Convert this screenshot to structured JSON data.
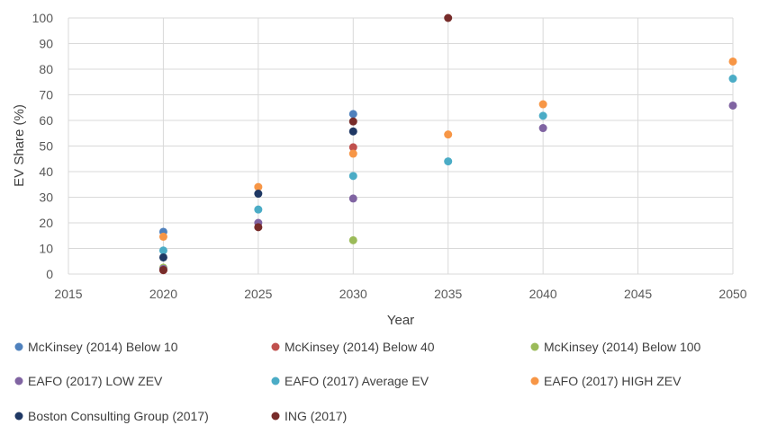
{
  "chart_data": {
    "type": "scatter",
    "title": "",
    "xlabel": "Year",
    "ylabel": "EV Share (%)",
    "xlim": [
      2015,
      2050
    ],
    "ylim": [
      0,
      100
    ],
    "xticks": [
      2015,
      2020,
      2025,
      2030,
      2035,
      2040,
      2045,
      2050
    ],
    "yticks": [
      0,
      10,
      20,
      30,
      40,
      50,
      60,
      70,
      80,
      90,
      100
    ],
    "grid": true,
    "legend_position": "bottom",
    "series": [
      {
        "name": "McKinsey (2014) Below 10",
        "color": "#4f81bd",
        "points": [
          [
            2020,
            16.5
          ],
          [
            2030,
            62.5
          ]
        ]
      },
      {
        "name": "McKinsey (2014) Below 40",
        "color": "#c0504d",
        "points": [
          [
            2020,
            1.5
          ],
          [
            2030,
            49.5
          ]
        ]
      },
      {
        "name": "McKinsey (2014) Below 100",
        "color": "#9bbb59",
        "points": [
          [
            2020,
            2.5
          ],
          [
            2030,
            13.2
          ]
        ]
      },
      {
        "name": "EAFO (2017) LOW ZEV",
        "color": "#8064a2",
        "points": [
          [
            2020,
            2.0
          ],
          [
            2025,
            20.0
          ],
          [
            2030,
            29.5
          ],
          [
            2040,
            57.0
          ],
          [
            2050,
            65.8
          ]
        ]
      },
      {
        "name": "EAFO (2017) Average EV",
        "color": "#4bacc6",
        "points": [
          [
            2020,
            9.2
          ],
          [
            2025,
            25.2
          ],
          [
            2030,
            38.3
          ],
          [
            2035,
            44.0
          ],
          [
            2040,
            61.8
          ],
          [
            2050,
            76.3
          ]
        ]
      },
      {
        "name": "EAFO (2017) HIGH ZEV",
        "color": "#f79646",
        "points": [
          [
            2020,
            14.6
          ],
          [
            2025,
            34.0
          ],
          [
            2030,
            47.0
          ],
          [
            2035,
            54.5
          ],
          [
            2040,
            66.3
          ],
          [
            2050,
            83.0
          ]
        ]
      },
      {
        "name": "Boston Consulting Group (2017)",
        "color": "#1f3864",
        "points": [
          [
            2020,
            6.5
          ],
          [
            2025,
            31.4
          ],
          [
            2030,
            55.7
          ]
        ]
      },
      {
        "name": "ING (2017)",
        "color": "#772c2a",
        "points": [
          [
            2020,
            1.6
          ],
          [
            2025,
            18.3
          ],
          [
            2030,
            59.6
          ],
          [
            2035,
            100
          ]
        ]
      }
    ]
  }
}
